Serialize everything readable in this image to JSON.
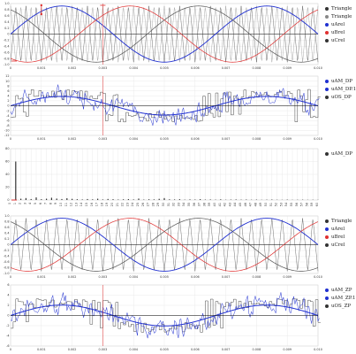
{
  "colors": {
    "black": "#333333",
    "red": "#e03030",
    "blue": "#2030d0",
    "gray": "#888888",
    "grid": "#dddddd"
  },
  "panels": [
    {
      "id": "p1",
      "legend": [
        {
          "label": "Triangle",
          "color": "#333333"
        },
        {
          "label": "Triangle",
          "color": "#888888"
        },
        {
          "label": "uArel",
          "color": "#2030d0"
        },
        {
          "label": "uBrel",
          "color": "#e03030"
        },
        {
          "label": "uCrel",
          "color": "#333333"
        }
      ],
      "y_ticks": [
        "1.0",
        "0.8",
        "0.6",
        "0.4",
        "0.2",
        "0",
        "-0.2",
        "-0.4",
        "-0.6",
        "-0.8",
        "-1.0"
      ],
      "x_ticks": [
        "0",
        "0.001",
        "0.002",
        "0.003",
        "0.004",
        "0.005",
        "0.006",
        "0.007",
        "0.008",
        "0.009",
        "0.010"
      ]
    },
    {
      "id": "p2",
      "legend": [
        {
          "label": "uAM_DP",
          "color": "#2030d0"
        },
        {
          "label": "uAM_DP.1",
          "color": "#2030d0"
        },
        {
          "label": "uOS_DP",
          "color": "#333333"
        }
      ],
      "y_ticks": [
        "12",
        "10",
        "8",
        "6",
        "4",
        "2",
        "0",
        "-2",
        "-4",
        "-6",
        "-8",
        "-10",
        "-12"
      ],
      "x_ticks": [
        "0",
        "0.001",
        "0.002",
        "0.003",
        "0.004",
        "0.005",
        "0.006",
        "0.007",
        "0.008",
        "0.009",
        "0.010"
      ]
    },
    {
      "id": "p3",
      "legend": [
        {
          "label": "uAM_DP",
          "color": "#333333"
        }
      ],
      "y_ticks": [
        "80",
        "60",
        "40",
        "20",
        "0"
      ],
      "x_ticks": [
        "0",
        "1",
        "2",
        "3",
        "4",
        "5",
        "6",
        "7",
        "8",
        "9",
        "10",
        "11",
        "12",
        "13",
        "14",
        "15",
        "16",
        "17",
        "18",
        "19",
        "20",
        "21",
        "22",
        "23",
        "24",
        "25",
        "26",
        "27",
        "28",
        "29",
        "30",
        "31",
        "32",
        "33",
        "34",
        "35",
        "36",
        "37",
        "38",
        "39",
        "40",
        "41",
        "42",
        "43",
        "44",
        "45",
        "46",
        "47",
        "48",
        "49",
        "50",
        "51",
        "52",
        "53",
        "54",
        "55",
        "56",
        "57",
        "58",
        "59",
        "60"
      ]
    },
    {
      "id": "p4",
      "legend": [
        {
          "label": "Triangle",
          "color": "#333333"
        },
        {
          "label": "uArel",
          "color": "#2030d0"
        },
        {
          "label": "uBrel",
          "color": "#e03030"
        },
        {
          "label": "uCrel",
          "color": "#333333"
        }
      ],
      "y_ticks": [
        "1.0",
        "0.8",
        "0.6",
        "0.4",
        "0.2",
        "0",
        "-0.2",
        "-0.4",
        "-0.6",
        "-0.8",
        "-1.0"
      ],
      "x_ticks": [
        "0",
        "0.001",
        "0.002",
        "0.003",
        "0.004",
        "0.005",
        "0.006",
        "0.007",
        "0.008",
        "0.009",
        "0.010"
      ]
    },
    {
      "id": "p5",
      "legend": [
        {
          "label": "uAM_ZP",
          "color": "#2030d0"
        },
        {
          "label": "uAM_ZP.1",
          "color": "#2030d0"
        },
        {
          "label": "uOS_ZP",
          "color": "#333333"
        }
      ],
      "y_ticks": [
        "6",
        "4",
        "2",
        "0",
        "-2",
        "-4",
        "-6"
      ],
      "x_ticks": [
        "0",
        "0.001",
        "0.002",
        "0.003",
        "0.004",
        "0.005",
        "0.006",
        "0.007",
        "0.008",
        "0.009",
        "0.010"
      ]
    }
  ]
}
